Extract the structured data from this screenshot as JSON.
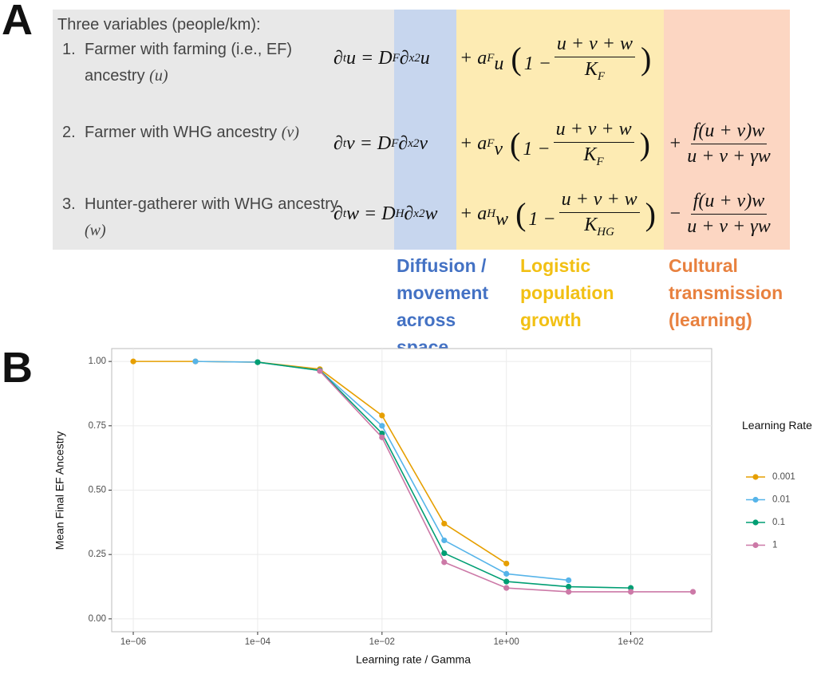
{
  "panel_a": {
    "label": "A",
    "heading": "Three variables (people/km):",
    "items": [
      {
        "number": "1.",
        "text": "Farmer with farming (i.e., EF) ancestry",
        "variable": "(u)"
      },
      {
        "number": "2.",
        "text": "Farmer with WHG ancestry",
        "variable": "(v)"
      },
      {
        "number": "3.",
        "text": "Hunter-gatherer with WHG ancestry",
        "variable": "(w)"
      }
    ],
    "equations": [
      {
        "diffusion": [
          {
            "text": "∂"
          },
          {
            "text": "t",
            "pos": "sub"
          },
          {
            "text": "u = D"
          },
          {
            "text": "F",
            "pos": "sub"
          },
          {
            "text": "∂"
          },
          {
            "text": "x",
            "pos": "sub"
          },
          {
            "text": "2",
            "pos": "sup"
          },
          {
            "text": "u"
          }
        ],
        "logistic": {
          "open": [
            {
              "text": "+ a"
            },
            {
              "text": "F",
              "pos": "sub"
            },
            {
              "text": "u (1 −"
            }
          ],
          "numerator": "u + v + w",
          "denominator": [
            {
              "text": "K"
            },
            {
              "text": "F",
              "pos": "sub"
            }
          ],
          "close": ")"
        }
      },
      {
        "diffusion": [
          {
            "text": "∂"
          },
          {
            "text": "t",
            "pos": "sub"
          },
          {
            "text": "v = D"
          },
          {
            "text": "F",
            "pos": "sub"
          },
          {
            "text": "∂"
          },
          {
            "text": "x",
            "pos": "sub"
          },
          {
            "text": "2",
            "pos": "sup"
          },
          {
            "text": "v"
          }
        ],
        "logistic": {
          "open": [
            {
              "text": "+ a"
            },
            {
              "text": "F",
              "pos": "sub"
            },
            {
              "text": "v (1 −"
            }
          ],
          "numerator": "u + v + w",
          "denominator": [
            {
              "text": "K"
            },
            {
              "text": "F",
              "pos": "sub"
            }
          ],
          "close": ")"
        },
        "cultural": {
          "sign": "+",
          "numerator": "f(u + v)w",
          "denominator": "u + v + γw"
        }
      },
      {
        "diffusion": [
          {
            "text": "∂"
          },
          {
            "text": "t",
            "pos": "sub"
          },
          {
            "text": "w = D"
          },
          {
            "text": "H",
            "pos": "sub"
          },
          {
            "text": "∂"
          },
          {
            "text": "x",
            "pos": "sub"
          },
          {
            "text": "2",
            "pos": "sup"
          },
          {
            "text": "w"
          }
        ],
        "logistic": {
          "open": [
            {
              "text": "+ a"
            },
            {
              "text": "H",
              "pos": "sub"
            },
            {
              "text": "w (1 −"
            }
          ],
          "numerator": "u + v + w",
          "denominator": [
            {
              "text": "K"
            },
            {
              "text": "HG",
              "pos": "sub"
            }
          ],
          "close": ")"
        },
        "cultural": {
          "sign": "−",
          "numerator": "f(u + v)w",
          "denominator": "u + v + γw"
        }
      }
    ],
    "column_labels": {
      "diffusion": "Diffusion / movement across space",
      "logistic": "Logistic population growth",
      "cultural": "Cultural transmission (learning)"
    }
  },
  "chart_data": {
    "type": "line",
    "panel_label": "B",
    "x_label": "Learning rate / Gamma",
    "y_label": "Mean Final EF Ancestry",
    "legend_title": "Learning Rate",
    "xscale": "log",
    "x": [
      1e-06,
      1e-05,
      0.0001,
      0.001,
      0.01,
      0.1,
      1,
      10,
      100,
      1000
    ],
    "xlim": [
      4.5e-07,
      2000
    ],
    "xticks": [
      {
        "value": 1e-06,
        "label": "1e−06"
      },
      {
        "value": 0.0001,
        "label": "1e−04"
      },
      {
        "value": 0.01,
        "label": "1e−02"
      },
      {
        "value": 1,
        "label": "1e+00"
      },
      {
        "value": 100,
        "label": "1e+02"
      }
    ],
    "ylim": [
      -0.05,
      1.05
    ],
    "yticks": [
      {
        "value": 0,
        "label": "0.00"
      },
      {
        "value": 0.25,
        "label": "0.25"
      },
      {
        "value": 0.5,
        "label": "0.50"
      },
      {
        "value": 0.75,
        "label": "0.75"
      },
      {
        "value": 1,
        "label": "1.00"
      }
    ],
    "grid": true,
    "series": [
      {
        "name": "0.001",
        "color": "#E69F00",
        "values": [
          1.0,
          1.0,
          0.997,
          0.97,
          0.79,
          0.37,
          0.215,
          null,
          null,
          null
        ]
      },
      {
        "name": "0.01",
        "color": "#56B4E9",
        "values": [
          null,
          1.0,
          0.997,
          0.965,
          0.75,
          0.305,
          0.175,
          0.15,
          null,
          null
        ]
      },
      {
        "name": "0.1",
        "color": "#009E73",
        "values": [
          null,
          null,
          0.997,
          0.965,
          0.72,
          0.255,
          0.145,
          0.125,
          0.12,
          null
        ]
      },
      {
        "name": "1",
        "color": "#CC79A7",
        "values": [
          null,
          null,
          null,
          0.963,
          0.705,
          0.22,
          0.12,
          0.105,
          0.105,
          0.105
        ]
      }
    ]
  }
}
